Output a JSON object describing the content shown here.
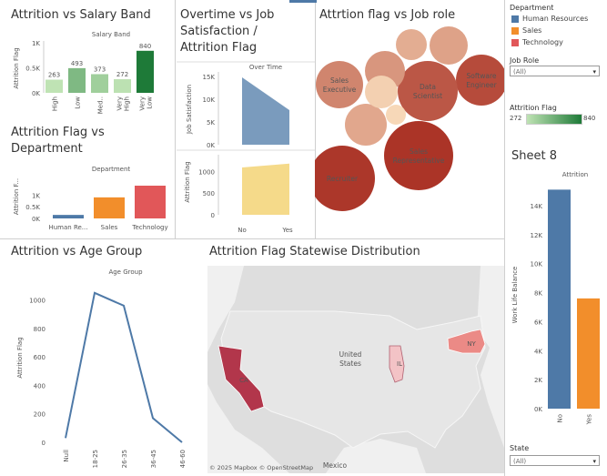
{
  "titles": {
    "salary": "Attrition vs Salary Band",
    "overtime": "Overtime vs Job Satisfaction / Attrition Flag",
    "overtime_l1": "Overtime vs Job",
    "overtime_l2": "Satisfaction /",
    "overtime_l3": "Attrition Flag",
    "jobrole": "Attrtion flag vs Job role",
    "department": "Attrition Flag vs Department",
    "dept_l1": "Attrition Flag vs",
    "dept_l2": "Department",
    "age": "Attrition vs Age Group",
    "map": "Attrition Flag Statewise Distribution",
    "sheet8": "Sheet 8"
  },
  "legend": {
    "department_title": "Department",
    "department_items": [
      {
        "label": "Human Resources",
        "color": "#4e79a7"
      },
      {
        "label": "Sales",
        "color": "#f28e2b"
      },
      {
        "label": "Technology",
        "color": "#e15759"
      }
    ],
    "jobrole_title": "Job Role",
    "jobrole_value": "(All)",
    "attrition_title": "Attrition Flag",
    "attrition_min": "272",
    "attrition_max": "840",
    "state_title": "State",
    "state_value": "(All)"
  },
  "chart_data": [
    {
      "id": "salary",
      "type": "bar",
      "title": "Salary Band",
      "ylabel": "Attrition Flag",
      "categories": [
        "High",
        "Low",
        "Med...",
        "Very High",
        "Very Low"
      ],
      "category_labels": [
        "High",
        "Low",
        "Med..",
        "Very\nHigh",
        "Very\nLow"
      ],
      "values": [
        263,
        493,
        373,
        272,
        840
      ],
      "ylim": [
        0,
        1000
      ],
      "yticks": [
        "0K",
        "0.5K",
        "1K"
      ]
    },
    {
      "id": "overtime_js",
      "type": "area",
      "title": "Over Time",
      "ylabel": "Job Satisfaction",
      "x": [
        "No",
        "Yes"
      ],
      "values": [
        14800,
        7600
      ],
      "ylim": [
        0,
        16000
      ],
      "yticks": [
        "0K",
        "5K",
        "10K",
        "15K"
      ],
      "color": "#4e79a7"
    },
    {
      "id": "overtime_af",
      "type": "area",
      "ylabel": "Attrition Flag",
      "x": [
        "No",
        "Yes"
      ],
      "values": [
        1090,
        1180
      ],
      "ylim": [
        0,
        1300
      ],
      "yticks": [
        "0",
        "500",
        "1000"
      ],
      "color": "#f1ce63"
    },
    {
      "id": "jobrole",
      "type": "bubble",
      "items": [
        {
          "label": "Software Engineer",
          "value": 760
        },
        {
          "label": "Sales Executive",
          "value": 560
        },
        {
          "label": "Data Scientist",
          "value": 720
        },
        {
          "label": "Recruiter",
          "value": 830
        },
        {
          "label": "Sales Representative",
          "value": 840
        },
        {
          "label": "",
          "value": 500
        },
        {
          "label": "",
          "value": 460
        },
        {
          "label": "",
          "value": 420
        },
        {
          "label": "",
          "value": 440
        },
        {
          "label": "",
          "value": 300
        },
        {
          "label": "",
          "value": 272
        }
      ]
    },
    {
      "id": "department",
      "type": "bar",
      "title": "Department",
      "ylabel": "Attrition F...",
      "categories": [
        "Human Re...",
        "Sales",
        "Technology"
      ],
      "values": [
        150,
        900,
        1400
      ],
      "colors": [
        "#4e79a7",
        "#f28e2b",
        "#e15759"
      ],
      "ylim": [
        0,
        1400
      ],
      "yticks": [
        "0K",
        "0.5K",
        "1K"
      ]
    },
    {
      "id": "age",
      "type": "line",
      "title": "Age Group",
      "ylabel": "Attrition Flag",
      "categories": [
        "Null",
        "18-25",
        "26-35",
        "36-45",
        "46-60"
      ],
      "values": [
        30,
        1050,
        960,
        170,
        0
      ],
      "ylim": [
        0,
        1100
      ],
      "yticks": [
        "0",
        "200",
        "400",
        "600",
        "800",
        "1000"
      ],
      "color": "#4e79a7"
    },
    {
      "id": "map",
      "type": "map",
      "states": [
        {
          "code": "CA",
          "value": 840,
          "color": "#b2364b"
        },
        {
          "code": "IL",
          "value": 272,
          "color": "#f3c3c6"
        },
        {
          "code": "NY",
          "value": 560,
          "color": "#eb8a86"
        }
      ],
      "labels": {
        "country": "United\nStates",
        "mexico": "Mexico",
        "credit": "© 2025 Mapbox  © OpenStreetMap"
      }
    },
    {
      "id": "sheet8",
      "type": "bar",
      "title": "Attrition",
      "ylabel": "Work Life Balance",
      "categories": [
        "No",
        "Yes"
      ],
      "values": [
        15100,
        7600
      ],
      "colors": [
        "#4e79a7",
        "#f28e2b"
      ],
      "ylim": [
        0,
        15500
      ],
      "yticks": [
        "0K",
        "2K",
        "4K",
        "6K",
        "8K",
        "10K",
        "12K",
        "14K"
      ]
    }
  ]
}
